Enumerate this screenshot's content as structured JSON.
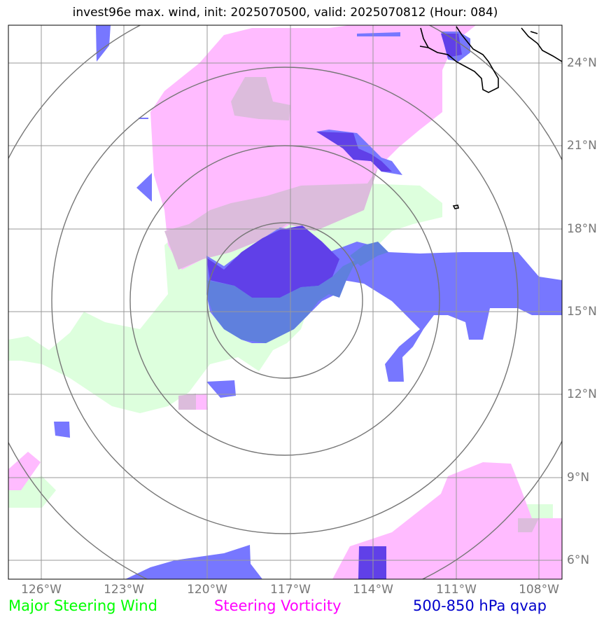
{
  "title": "invest96e max. wind, init: 2025070500, valid: 2025070812 (Hour: 084)",
  "lon_labels": [
    "126°W",
    "123°W",
    "120°W",
    "117°W",
    "114°W",
    "111°W",
    "108°W"
  ],
  "lat_labels": [
    "24°N",
    "21°N",
    "18°N",
    "15°N",
    "12°N",
    "9°N",
    "6°N"
  ],
  "legend": [
    {
      "label": "Major Steering Wind",
      "color": "#00ff00"
    },
    {
      "label": "Steering Vorticity",
      "color": "#ff00ff"
    },
    {
      "label": "500-850 hPa qvap",
      "color": "#0000cc"
    }
  ],
  "layers": {
    "wind_color": "#ddffdd",
    "vorticity_color": "#ffbbff",
    "overlap_color": "#dcbcdc",
    "qvap_color": "#7777ff",
    "qvap_dark_color": "#6040e8",
    "qvap_mid_color": "#5f80dd"
  },
  "map_style": {
    "grid_color": "#999999",
    "ring_color": "#777777",
    "coast_color": "#000000"
  }
}
